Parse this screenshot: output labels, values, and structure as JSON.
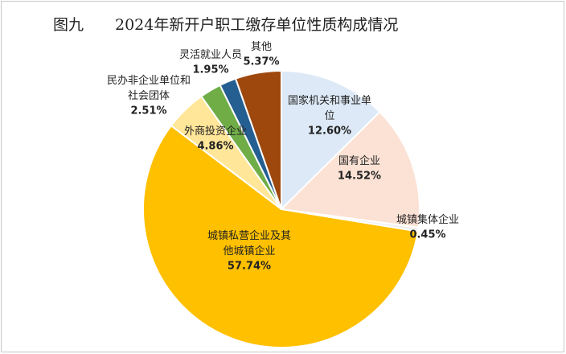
{
  "chart_data": {
    "type": "pie",
    "figure_label": "图九",
    "title": "2024年新开户职工缴存单位性质构成情况",
    "categories": [
      "国家机关和事业单位",
      "国有企业",
      "城镇集体企业",
      "城镇私营企业及其他城镇企业",
      "外商投资企业",
      "民办非企业单位和社会团体",
      "灵活就业人员",
      "其他"
    ],
    "values": [
      12.6,
      14.52,
      0.45,
      57.74,
      4.86,
      2.51,
      1.95,
      5.37
    ],
    "value_labels": [
      "12.60%",
      "14.52%",
      "0.45%",
      "57.74%",
      "4.86%",
      "2.51%",
      "1.95%",
      "5.37%"
    ],
    "colors": [
      "#dde9f6",
      "#fbe2d4",
      "#eeeeee",
      "#ffc000",
      "#ffe699",
      "#70ad47",
      "#255e91",
      "#9e480e"
    ]
  }
}
